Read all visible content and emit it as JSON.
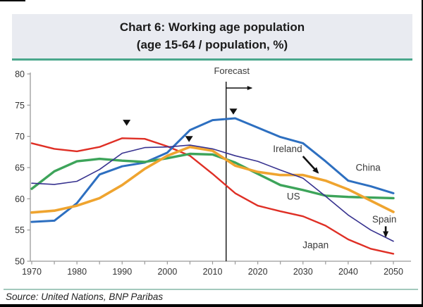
{
  "page": {
    "title_line1": "Chart 6: Working age population",
    "title_line2": "(age 15-64 / population, %)",
    "source": "Source: United Nations, BNP Paribas"
  },
  "colors": {
    "title_bar_bg": "#e9ebf1",
    "title_underline": "#4aa78c",
    "source_divider": "#a3c9bd",
    "axis": "#9a9a9a",
    "tick_text": "#333333",
    "annotation_text": "#3a3a3a",
    "annotation_black": "#111111"
  },
  "chart_data": {
    "type": "line",
    "title": "Chart 6: Working age population (age 15-64 / population, %)",
    "xlabel": "",
    "ylabel": "",
    "xlim": [
      1970,
      2050
    ],
    "ylim": [
      50,
      80
    ],
    "grid": false,
    "legend_position": "inline-labels",
    "x": [
      1970,
      1975,
      1980,
      1985,
      1990,
      1995,
      2000,
      2005,
      2010,
      2015,
      2020,
      2025,
      2030,
      2035,
      2040,
      2045,
      2050
    ],
    "yticks": [
      50,
      55,
      60,
      65,
      70,
      75,
      80
    ],
    "xticks_labeled": [
      1970,
      1980,
      1990,
      2000,
      2010,
      2020,
      2030,
      2040,
      2050
    ],
    "xtick_minor_step": 5,
    "series": [
      {
        "name": "Japan",
        "color": "#df2f25",
        "width": 2.4,
        "values": [
          68.9,
          68.0,
          67.6,
          68.3,
          69.7,
          69.6,
          68.4,
          66.9,
          64.0,
          60.9,
          58.9,
          58.0,
          57.2,
          55.7,
          53.5,
          52.0,
          51.2
        ]
      },
      {
        "name": "China",
        "color": "#2d6fc0",
        "width": 3.0,
        "values": [
          56.3,
          56.5,
          59.3,
          63.9,
          65.2,
          65.8,
          67.4,
          71.0,
          72.6,
          72.9,
          71.4,
          69.9,
          68.9,
          66.0,
          62.9,
          62.0,
          60.9
        ]
      },
      {
        "name": "US",
        "color": "#3da45a",
        "width": 3.4,
        "values": [
          61.6,
          64.4,
          66.0,
          66.4,
          66.1,
          65.9,
          66.5,
          67.2,
          67.1,
          65.8,
          64.0,
          62.2,
          61.4,
          60.5,
          60.3,
          60.2,
          60.1
        ]
      },
      {
        "name": "Ireland",
        "color": "#efa42f",
        "width": 3.6,
        "values": [
          57.8,
          58.1,
          58.9,
          60.1,
          62.2,
          64.8,
          66.9,
          68.3,
          67.7,
          65.3,
          64.3,
          63.8,
          63.8,
          62.9,
          61.5,
          59.7,
          57.9
        ]
      },
      {
        "name": "Spain",
        "color": "#37328f",
        "width": 1.6,
        "values": [
          62.5,
          62.3,
          62.8,
          64.7,
          67.3,
          68.2,
          68.3,
          68.6,
          68.0,
          66.9,
          66.0,
          64.6,
          63.3,
          60.4,
          57.4,
          55.0,
          53.2
        ]
      }
    ],
    "annotations": {
      "forecast": {
        "label": "Forecast",
        "year": 2013
      },
      "peak_markers": [
        {
          "year": 1991.0,
          "value": 72.2
        },
        {
          "year": 2004.8,
          "value": 69.6
        },
        {
          "year": 2014.6,
          "value": 74.0
        }
      ],
      "line_labels": [
        {
          "text": "Ireland",
          "year": 2026.6,
          "value": 68.0,
          "arrow_from": [
            2030.0,
            66.8
          ],
          "arrow_to": [
            2033.3,
            64.2
          ]
        },
        {
          "text": "China",
          "year": 2044.4,
          "value": 65.0
        },
        {
          "text": "US",
          "year": 2027.9,
          "value": 60.4
        },
        {
          "text": "Spain",
          "year": 2048.0,
          "value": 56.7,
          "arrow_from": [
            2048.3,
            55.6
          ],
          "arrow_to": [
            2048.3,
            54.0
          ]
        },
        {
          "text": "Japan",
          "year": 2032.8,
          "value": 52.6
        }
      ]
    }
  }
}
